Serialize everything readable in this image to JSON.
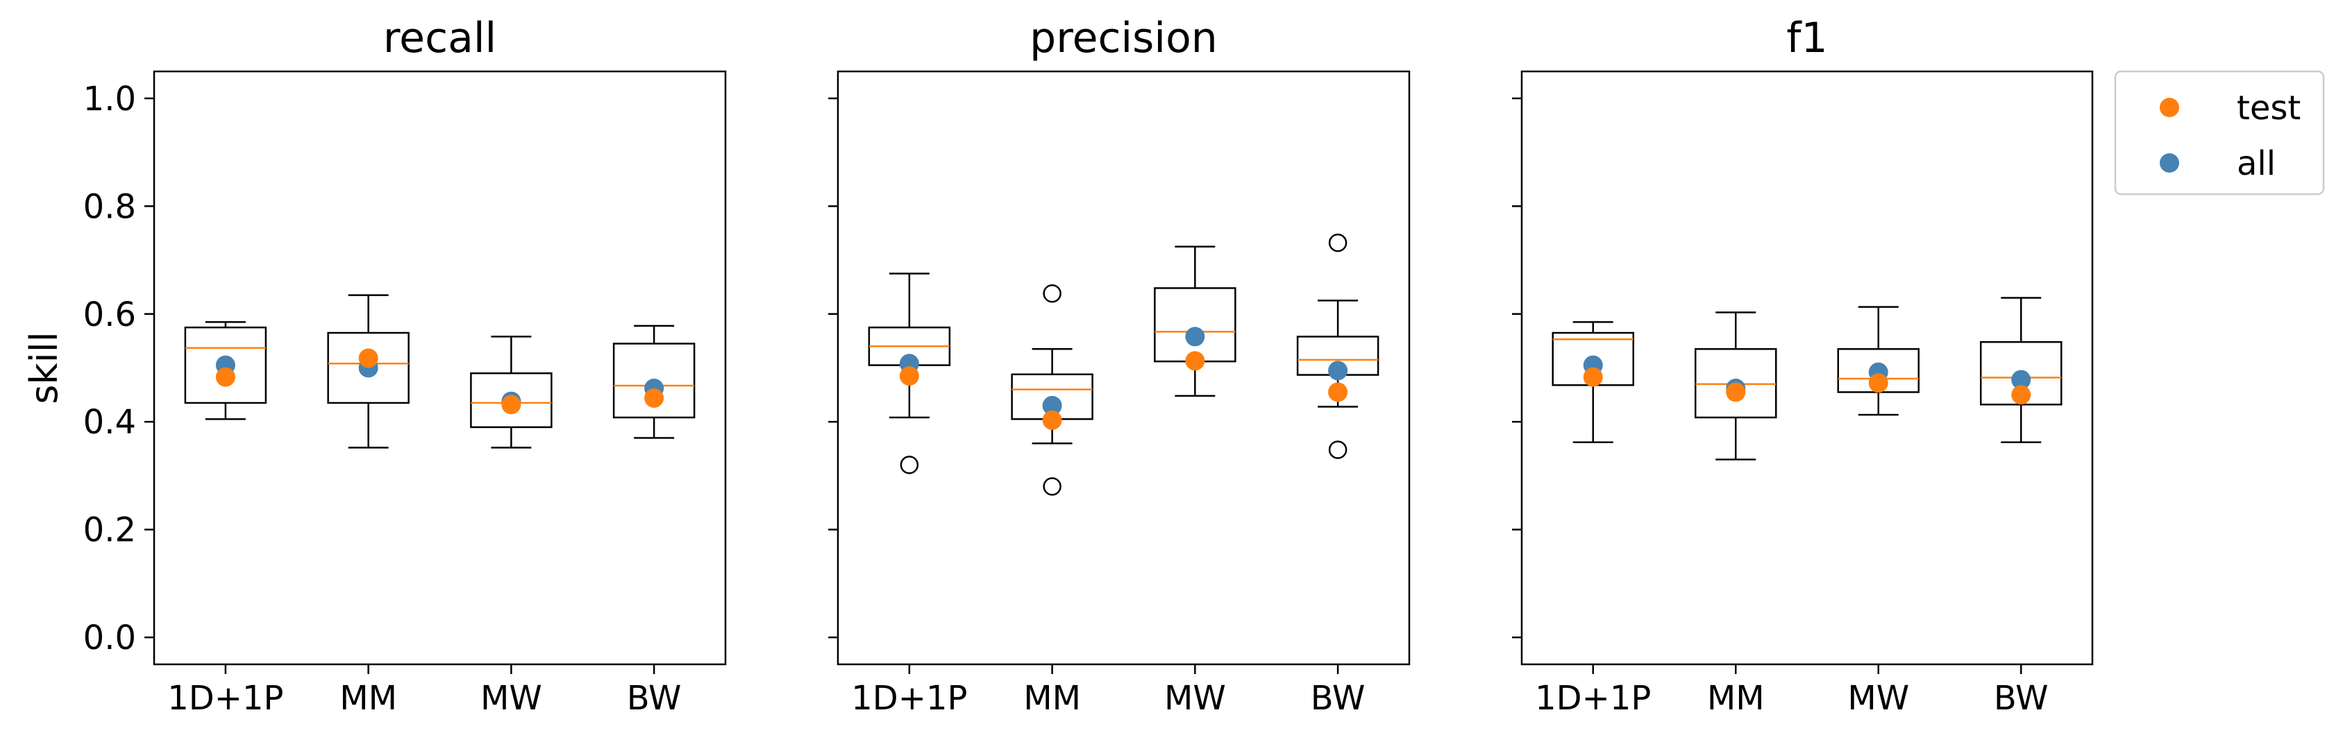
{
  "colors": {
    "test": "#ff7f0e",
    "all": "#4682b4",
    "median": "#ff7f0e",
    "box": "#000000"
  },
  "legend": {
    "placement": "upper-right-outside",
    "entries": [
      {
        "label": "test",
        "color": "#ff7f0e"
      },
      {
        "label": "all",
        "color": "#4682b4"
      }
    ]
  },
  "chart_data": [
    {
      "type": "box",
      "title": "recall",
      "ylabel": "skill",
      "ylim": [
        -0.05,
        1.05
      ],
      "yticks": [
        0.0,
        0.2,
        0.4,
        0.6,
        0.8,
        1.0
      ],
      "ytick_labels": [
        "0.0",
        "0.2",
        "0.4",
        "0.6",
        "0.8",
        "1.0"
      ],
      "categories": [
        "1D+1P",
        "MM",
        "MW",
        "BW"
      ],
      "boxes": [
        {
          "whislo": 0.405,
          "q1": 0.435,
          "med": 0.537,
          "q3": 0.575,
          "whishi": 0.585,
          "fliers": []
        },
        {
          "whislo": 0.352,
          "q1": 0.435,
          "med": 0.508,
          "q3": 0.565,
          "whishi": 0.635,
          "fliers": []
        },
        {
          "whislo": 0.352,
          "q1": 0.39,
          "med": 0.435,
          "q3": 0.49,
          "whishi": 0.558,
          "fliers": []
        },
        {
          "whislo": 0.37,
          "q1": 0.408,
          "med": 0.467,
          "q3": 0.545,
          "whishi": 0.578,
          "fliers": []
        }
      ],
      "series": [
        {
          "name": "all",
          "values": [
            0.505,
            0.5,
            0.438,
            0.462
          ]
        },
        {
          "name": "test",
          "values": [
            0.483,
            0.518,
            0.432,
            0.444
          ]
        }
      ]
    },
    {
      "type": "box",
      "title": "precision",
      "ylim": [
        -0.05,
        1.05
      ],
      "yticks": [
        0.0,
        0.2,
        0.4,
        0.6,
        0.8,
        1.0
      ],
      "categories": [
        "1D+1P",
        "MM",
        "MW",
        "BW"
      ],
      "boxes": [
        {
          "whislo": 0.408,
          "q1": 0.505,
          "med": 0.54,
          "q3": 0.575,
          "whishi": 0.675,
          "fliers": [
            0.32
          ]
        },
        {
          "whislo": 0.36,
          "q1": 0.405,
          "med": 0.46,
          "q3": 0.488,
          "whishi": 0.535,
          "fliers": [
            0.638,
            0.28
          ]
        },
        {
          "whislo": 0.448,
          "q1": 0.512,
          "med": 0.567,
          "q3": 0.648,
          "whishi": 0.725,
          "fliers": []
        },
        {
          "whislo": 0.428,
          "q1": 0.487,
          "med": 0.515,
          "q3": 0.558,
          "whishi": 0.625,
          "fliers": [
            0.732,
            0.348
          ]
        }
      ],
      "series": [
        {
          "name": "all",
          "values": [
            0.508,
            0.43,
            0.558,
            0.495
          ]
        },
        {
          "name": "test",
          "values": [
            0.485,
            0.403,
            0.513,
            0.455
          ]
        }
      ]
    },
    {
      "type": "box",
      "title": "f1",
      "ylim": [
        -0.05,
        1.05
      ],
      "yticks": [
        0.0,
        0.2,
        0.4,
        0.6,
        0.8,
        1.0
      ],
      "categories": [
        "1D+1P",
        "MM",
        "MW",
        "BW"
      ],
      "boxes": [
        {
          "whislo": 0.362,
          "q1": 0.468,
          "med": 0.553,
          "q3": 0.565,
          "whishi": 0.585,
          "fliers": []
        },
        {
          "whislo": 0.33,
          "q1": 0.408,
          "med": 0.47,
          "q3": 0.535,
          "whishi": 0.603,
          "fliers": []
        },
        {
          "whislo": 0.413,
          "q1": 0.455,
          "med": 0.48,
          "q3": 0.535,
          "whishi": 0.613,
          "fliers": []
        },
        {
          "whislo": 0.362,
          "q1": 0.432,
          "med": 0.482,
          "q3": 0.548,
          "whishi": 0.63,
          "fliers": []
        }
      ],
      "series": [
        {
          "name": "all",
          "values": [
            0.505,
            0.462,
            0.492,
            0.478
          ]
        },
        {
          "name": "test",
          "values": [
            0.483,
            0.455,
            0.472,
            0.45
          ]
        }
      ]
    }
  ]
}
